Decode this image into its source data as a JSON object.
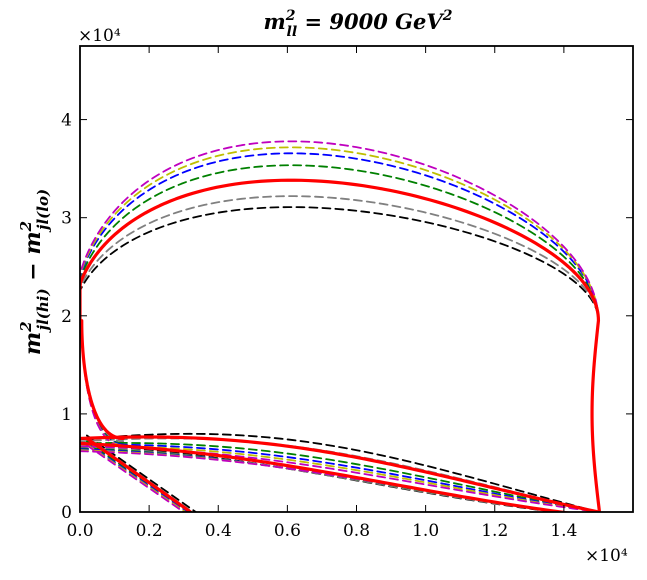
{
  "chart_data": {
    "type": "line",
    "title": "m²_ll = 9000 GeV²",
    "title_parts": {
      "pre": "m",
      "sup": "2",
      "sub": "ll",
      "post": " = 9000 GeV",
      "post_sup": "2"
    },
    "xlabel": "",
    "ylabel": "m²_jl(hi) − m²_jl(lo)",
    "ylabel_parts": {
      "a": "m",
      "a_sup": "2",
      "a_sub": "jl(hi)",
      "minus": " − ",
      "b": "m",
      "b_sup": "2",
      "b_sub": "jl(lo)"
    },
    "x_multiplier": "×10⁴",
    "y_multiplier": "×10⁴",
    "xlim": [
      0,
      1.6
    ],
    "ylim": [
      0,
      4.75
    ],
    "x_ticks": [
      0.0,
      0.2,
      0.4,
      0.6,
      0.8,
      1.0,
      1.2,
      1.4
    ],
    "x_tick_labels": [
      "0.0",
      "0.2",
      "0.4",
      "0.6",
      "0.8",
      "1.0",
      "1.2",
      "1.4"
    ],
    "y_ticks": [
      0,
      1,
      2,
      3,
      4
    ],
    "y_tick_labels": [
      "0",
      "1",
      "2",
      "3",
      "4"
    ],
    "grid": false,
    "series": [
      {
        "name": "black dashed",
        "color": "#000000",
        "style": "dashed",
        "peak": 3.09,
        "lens_y0": 0.74,
        "lens_h": 0.2,
        "t_end": 3.35,
        "t_start": 1.12,
        "t_y0": 0.78,
        "t_x0": 0.02
      },
      {
        "name": "gray dashed",
        "color": "#808080",
        "style": "dashed",
        "peak": 3.2,
        "lens_y0": 0.72,
        "lens_h": 0.15,
        "t_end": 3.25,
        "t_start": 1.1,
        "t_y0": 0.76,
        "t_x0": 0.02
      },
      {
        "name": "green dashed",
        "color": "#008000",
        "style": "dashed",
        "peak": 3.51,
        "lens_y0": 0.7,
        "lens_h": 0.08,
        "t_end": 3.15,
        "t_start": 1.07,
        "t_y0": 0.72,
        "t_x0": 0.02
      },
      {
        "name": "blue dashed",
        "color": "#0000ff",
        "style": "dashed",
        "peak": 3.63,
        "lens_y0": 0.69,
        "lens_h": 0.05,
        "t_end": 3.1,
        "t_start": 1.06,
        "t_y0": 0.7,
        "t_x0": 0.02
      },
      {
        "name": "yellow dashed",
        "color": "#bfbf00",
        "style": "dashed",
        "peak": 3.69,
        "lens_y0": 0.68,
        "lens_h": 0.03,
        "t_end": 3.05,
        "t_start": 1.05,
        "t_y0": 0.69,
        "t_x0": 0.02
      },
      {
        "name": "magenta dashed",
        "color": "#bf00bf",
        "style": "dashed",
        "peak": 3.75,
        "lens_y0": 0.67,
        "lens_h": 0.01,
        "t_end": 3.0,
        "t_start": 1.04,
        "t_y0": 0.68,
        "t_x0": 0.02
      },
      {
        "name": "red solid",
        "color": "#ff0000",
        "style": "solid",
        "peak": 3.36,
        "lens_y0": 0.75,
        "lens_h": 0.12,
        "t_end": 3.2,
        "t_start": 1.08,
        "t_y0": 0.75,
        "t_x0": 0.02
      }
    ]
  }
}
